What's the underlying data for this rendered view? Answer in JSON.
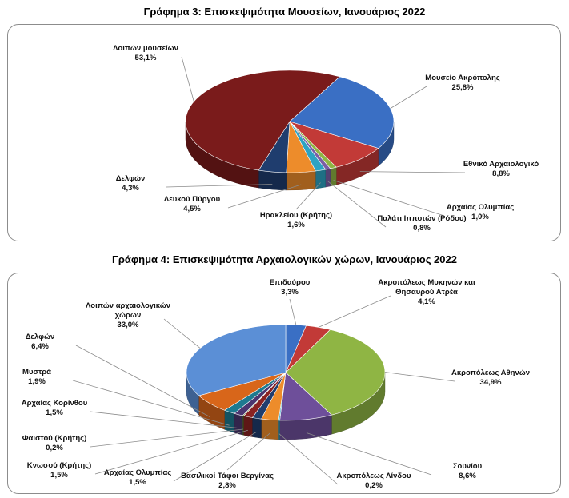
{
  "chart_data": [
    {
      "type": "pie",
      "title": "Γράφημα 3: Επισκεψιμότητα Μουσείων, Ιανουάριος 2022",
      "slices": [
        {
          "label": "Μουσείο Ακρόπολης",
          "value": 25.8,
          "value_label": "25,8%",
          "color": "#3a6fc4"
        },
        {
          "label": "Εθνικό Αρχαιολογικό",
          "value": 8.8,
          "value_label": "8,8%",
          "color": "#c23a37"
        },
        {
          "label": "Αρχαίας Ολυμπίας",
          "value": 1.0,
          "value_label": "1,0%",
          "color": "#8fb544"
        },
        {
          "label": "Παλάτι Ιπποτών (Ρόδου)",
          "value": 0.8,
          "value_label": "0,8%",
          "color": "#7b5ea6"
        },
        {
          "label": "Ηρακλείου (Κρήτης)",
          "value": 1.6,
          "value_label": "1,6%",
          "color": "#2ea3c2"
        },
        {
          "label": "Λευκού Πύργου",
          "value": 4.5,
          "value_label": "4,5%",
          "color": "#ed8c2b"
        },
        {
          "label": "Δελφών",
          "value": 4.3,
          "value_label": "4,3%",
          "color": "#1f3d6e"
        },
        {
          "label": "Λοιπών μουσείων",
          "value": 53.1,
          "value_label": "53,1%",
          "color": "#7a1b1b"
        }
      ]
    },
    {
      "type": "pie",
      "title": "Γράφημα 4: Επισκεψιμότητα Αρχαιολογικών χώρων, Ιανουάριος 2022",
      "slices": [
        {
          "label": "Επιδαύρου",
          "value": 3.3,
          "value_label": "3,3%",
          "color": "#3a6fc4"
        },
        {
          "label": "Ακροπόλεως Μυκηνών και Θησαυρού Ατρέα",
          "value": 4.1,
          "value_label": "4,1%",
          "color": "#c23a37"
        },
        {
          "label": "Ακροπόλεως Αθηνών",
          "value": 34.9,
          "value_label": "34,9%",
          "color": "#8fb544"
        },
        {
          "label": "Σουνίου",
          "value": 8.6,
          "value_label": "8,6%",
          "color": "#6e4f9a"
        },
        {
          "label": "Ακροπόλεως Λίνδου",
          "value": 0.2,
          "value_label": "0,2%",
          "color": "#2ea3c2"
        },
        {
          "label": "Βασιλικοί Τάφοι Βεργίνας",
          "value": 2.8,
          "value_label": "2,8%",
          "color": "#ed8c2b"
        },
        {
          "label": "Αρχαίας Ολυμπίας",
          "value": 1.5,
          "value_label": "1,5%",
          "color": "#1f3d6e"
        },
        {
          "label": "Κνωσού (Κρήτης)",
          "value": 1.5,
          "value_label": "1,5%",
          "color": "#8a2222"
        },
        {
          "label": "Φαιστού (Κρήτης)",
          "value": 0.2,
          "value_label": "0,2%",
          "color": "#5c7a2c"
        },
        {
          "label": "Αρχαίας Κορίνθου",
          "value": 1.5,
          "value_label": "1,5%",
          "color": "#4a3670"
        },
        {
          "label": "Μυστρά",
          "value": 1.9,
          "value_label": "1,9%",
          "color": "#1d7a90"
        },
        {
          "label": "Δελφών",
          "value": 6.4,
          "value_label": "6,4%",
          "color": "#d8661a"
        },
        {
          "label": "Λοιπών αρχαιολογικών χώρων",
          "value": 33.0,
          "value_label": "33,0%",
          "color": "#5b8fd6"
        }
      ]
    }
  ]
}
